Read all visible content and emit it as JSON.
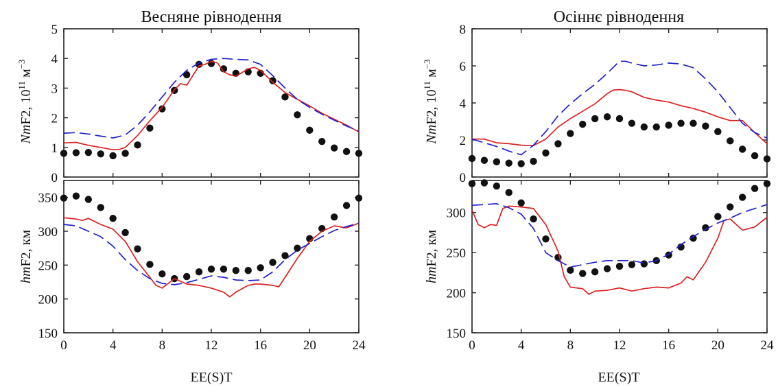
{
  "panels": [
    {
      "title": "Весняне рівнодення",
      "xlabel": "EE(S)T"
    },
    {
      "title": "Осіннє рівнодення",
      "xlabel": "EE(S)T"
    }
  ],
  "ylabels": {
    "nmf2": {
      "pre": "Nm",
      "main": "F2, 10",
      "sup1": "11",
      "unit": " м",
      "sup2": "−3"
    },
    "hmf2": {
      "pre": "hm",
      "main": "F2, км"
    }
  },
  "chart_data": [
    {
      "type": "line",
      "title": "Весняне рівнодення",
      "xlabel": "EE(S)T",
      "ylabel": "NmF2, 10^11 м^-3",
      "xlim": [
        0,
        24
      ],
      "ylim": [
        0,
        5
      ],
      "xticks": [
        0,
        4,
        8,
        12,
        16,
        20,
        24
      ],
      "yticks": [
        0,
        1,
        2,
        3,
        4,
        5
      ],
      "grid": false,
      "series": [
        {
          "style": "dots",
          "color": "#111111",
          "x": [
            0,
            1,
            2,
            3,
            4,
            5,
            6,
            7,
            8,
            9,
            10,
            11,
            12,
            13,
            14,
            15,
            16,
            17,
            18,
            19,
            20,
            21,
            22,
            23,
            24
          ],
          "y": [
            0.8,
            0.82,
            0.83,
            0.78,
            0.72,
            0.8,
            1.08,
            1.65,
            2.3,
            2.92,
            3.45,
            3.8,
            3.83,
            3.65,
            3.5,
            3.55,
            3.5,
            3.25,
            2.7,
            2.1,
            1.58,
            1.2,
            0.98,
            0.86,
            0.8
          ]
        },
        {
          "style": "solid",
          "color": "#dd2020",
          "x": [
            0,
            1,
            2,
            3,
            4,
            4.5,
            5,
            6,
            7,
            8,
            9,
            9.5,
            10,
            11,
            11.5,
            12,
            12.5,
            13,
            13.5,
            14,
            15,
            15.5,
            16,
            17,
            18,
            19,
            20,
            21,
            22,
            23,
            24
          ],
          "y": [
            1.15,
            1.17,
            1.07,
            1.0,
            0.92,
            0.93,
            1.0,
            1.4,
            1.9,
            2.35,
            2.95,
            3.15,
            3.1,
            3.75,
            3.8,
            3.9,
            3.85,
            3.55,
            3.45,
            3.4,
            3.65,
            3.7,
            3.6,
            3.2,
            2.85,
            2.62,
            2.4,
            2.15,
            1.95,
            1.75,
            1.52
          ]
        },
        {
          "style": "dashed",
          "color": "#2020cc",
          "x": [
            0,
            1,
            2,
            3,
            4,
            5,
            6,
            7,
            8,
            9,
            10,
            11,
            12,
            13,
            14,
            15,
            16,
            17,
            18,
            19,
            20,
            21,
            22,
            23,
            24
          ],
          "y": [
            1.48,
            1.5,
            1.45,
            1.38,
            1.32,
            1.42,
            1.75,
            2.2,
            2.7,
            3.2,
            3.6,
            3.85,
            3.97,
            4.0,
            3.97,
            3.95,
            3.8,
            3.42,
            3.0,
            2.62,
            2.35,
            2.12,
            1.92,
            1.72,
            1.55
          ]
        }
      ]
    },
    {
      "type": "line",
      "title": "Осіннє рівнодення",
      "xlabel": "EE(S)T",
      "ylabel": "NmF2, 10^11 м^-3",
      "xlim": [
        0,
        24
      ],
      "ylim": [
        0,
        8
      ],
      "xticks": [
        0,
        4,
        8,
        12,
        16,
        20,
        24
      ],
      "yticks": [
        0,
        2,
        4,
        6,
        8
      ],
      "grid": false,
      "series": [
        {
          "style": "dots",
          "color": "#111111",
          "x": [
            0,
            1,
            2,
            3,
            4,
            5,
            6,
            7,
            8,
            9,
            10,
            11,
            12,
            13,
            14,
            15,
            16,
            17,
            18,
            19,
            20,
            21,
            22,
            23,
            24
          ],
          "y": [
            1.0,
            0.9,
            0.82,
            0.75,
            0.72,
            0.85,
            1.3,
            1.8,
            2.35,
            2.85,
            3.15,
            3.25,
            3.15,
            2.9,
            2.7,
            2.7,
            2.8,
            2.9,
            2.9,
            2.75,
            2.45,
            1.95,
            1.5,
            1.15,
            0.98
          ]
        },
        {
          "style": "solid",
          "color": "#dd2020",
          "x": [
            0,
            1,
            2,
            3,
            4,
            5,
            6,
            7,
            8,
            9,
            10,
            11,
            11.5,
            12,
            12.5,
            13,
            14,
            15,
            16,
            17,
            18,
            19,
            20,
            21,
            22,
            23,
            24
          ],
          "y": [
            2.05,
            2.05,
            1.85,
            1.8,
            1.72,
            1.7,
            2.05,
            2.7,
            3.15,
            3.55,
            3.95,
            4.5,
            4.7,
            4.72,
            4.68,
            4.6,
            4.3,
            4.15,
            4.05,
            3.85,
            3.7,
            3.5,
            3.25,
            3.05,
            3.05,
            2.4,
            1.8
          ]
        },
        {
          "style": "dashed",
          "color": "#2020cc",
          "x": [
            0,
            1,
            2,
            3,
            4,
            5,
            6,
            7,
            8,
            9,
            10,
            11,
            12,
            12.5,
            13,
            14,
            15,
            16,
            17,
            18,
            19,
            20,
            21,
            22,
            23,
            24
          ],
          "y": [
            2.05,
            1.85,
            1.65,
            1.4,
            1.2,
            1.72,
            2.45,
            3.3,
            3.95,
            4.5,
            5.0,
            5.6,
            6.25,
            6.25,
            6.15,
            6.0,
            6.05,
            6.15,
            6.1,
            5.9,
            5.3,
            4.6,
            3.75,
            2.9,
            2.4,
            2.1
          ]
        }
      ]
    },
    {
      "type": "line",
      "title": "",
      "xlabel": "EE(S)T",
      "ylabel": "hmF2, км",
      "xlim": [
        0,
        24
      ],
      "ylim": [
        150,
        375
      ],
      "xticks": [
        0,
        4,
        8,
        12,
        16,
        20,
        24
      ],
      "yticks": [
        150,
        200,
        250,
        300,
        350
      ],
      "grid": false,
      "series": [
        {
          "style": "dots",
          "color": "#111111",
          "x": [
            0,
            1,
            2,
            3,
            4,
            5,
            6,
            7,
            8,
            9,
            10,
            11,
            12,
            13,
            14,
            15,
            16,
            17,
            18,
            19,
            20,
            21,
            22,
            23,
            24
          ],
          "y": [
            349,
            352,
            347,
            335,
            319,
            298,
            274,
            251,
            237,
            230,
            233,
            240,
            244,
            244,
            242,
            242,
            246,
            254,
            264,
            275,
            289,
            304,
            321,
            338,
            349
          ]
        },
        {
          "style": "solid",
          "color": "#dd2020",
          "x": [
            0,
            1,
            1.5,
            2,
            3,
            4,
            5,
            6,
            7,
            7.5,
            8,
            9,
            10,
            11,
            12,
            13,
            13.5,
            14,
            15,
            15.5,
            16,
            17,
            17.5,
            18,
            19,
            20,
            21,
            22,
            23,
            24
          ],
          "y": [
            320,
            318,
            316,
            319,
            310,
            303,
            285,
            255,
            232,
            220,
            216,
            230,
            222,
            220,
            216,
            210,
            203,
            210,
            220,
            222,
            222,
            220,
            218,
            232,
            260,
            285,
            300,
            308,
            305,
            312
          ]
        },
        {
          "style": "dashed",
          "color": "#2020cc",
          "x": [
            0,
            1,
            2,
            3,
            4,
            5,
            6,
            7,
            8,
            9,
            10,
            11,
            12,
            13,
            14,
            15,
            16,
            17,
            18,
            19,
            20,
            21,
            22,
            23,
            24
          ],
          "y": [
            310,
            308,
            300,
            292,
            278,
            258,
            242,
            230,
            223,
            221,
            224,
            229,
            234,
            232,
            228,
            227,
            228,
            240,
            258,
            272,
            282,
            292,
            301,
            307,
            312
          ]
        }
      ]
    },
    {
      "type": "line",
      "title": "",
      "xlabel": "EE(S)T",
      "ylabel": "hmF2, км",
      "xlim": [
        0,
        24
      ],
      "ylim": [
        150,
        340
      ],
      "xticks": [
        0,
        4,
        8,
        12,
        16,
        20,
        24
      ],
      "yticks": [
        150,
        200,
        250,
        300
      ],
      "grid": false,
      "series": [
        {
          "style": "dots",
          "color": "#111111",
          "x": [
            0,
            1,
            2,
            3,
            4,
            5,
            6,
            7,
            8,
            9,
            10,
            11,
            12,
            13,
            14,
            15,
            16,
            17,
            18,
            19,
            20,
            21,
            22,
            23,
            24
          ],
          "y": [
            336,
            337,
            333,
            325,
            312,
            292,
            267,
            244,
            228,
            224,
            226,
            230,
            233,
            235,
            236,
            240,
            247,
            257,
            268,
            281,
            295,
            307,
            319,
            330,
            336
          ]
        },
        {
          "style": "solid",
          "color": "#dd2020",
          "x": [
            0,
            0.5,
            1,
            1.5,
            2,
            2.5,
            3,
            4,
            5,
            6,
            7,
            7.5,
            8,
            8.5,
            9,
            9.5,
            10,
            11,
            12,
            13,
            14,
            15,
            16,
            17,
            17.5,
            18,
            19,
            20,
            20.5,
            21,
            22,
            23,
            24
          ],
          "y": [
            303,
            285,
            281,
            285,
            284,
            305,
            308,
            307,
            305,
            285,
            252,
            220,
            207,
            206,
            205,
            198,
            202,
            203,
            206,
            202,
            205,
            207,
            206,
            212,
            220,
            216,
            238,
            268,
            290,
            292,
            278,
            282,
            294
          ]
        },
        {
          "style": "dashed",
          "color": "#2020cc",
          "x": [
            0,
            1,
            2,
            3,
            4,
            5,
            6,
            7,
            8,
            9,
            10,
            11,
            12,
            13,
            14,
            15,
            16,
            17,
            18,
            19,
            20,
            21,
            22,
            23,
            24
          ],
          "y": [
            309,
            310,
            311,
            306,
            298,
            280,
            250,
            240,
            232,
            235,
            238,
            240,
            240,
            240,
            237,
            240,
            248,
            260,
            270,
            279,
            287,
            293,
            300,
            305,
            310
          ]
        }
      ]
    }
  ]
}
